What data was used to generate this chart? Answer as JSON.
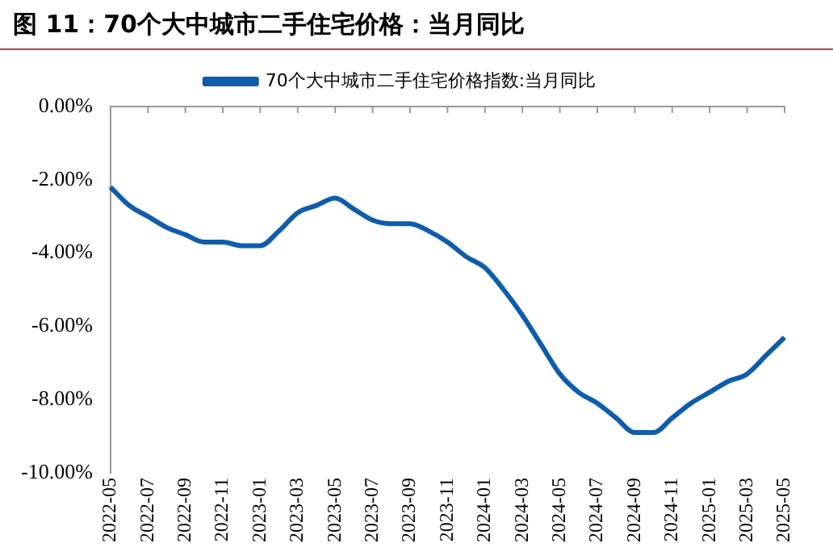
{
  "chart_data": {
    "type": "line",
    "title": "图 11：70个大中城市二手住宅价格：当月同比",
    "categories": [
      "2022-05",
      null,
      "2022-07",
      null,
      "2022-09",
      null,
      "2022-11",
      null,
      "2023-01",
      null,
      "2023-03",
      null,
      "2023-05",
      null,
      "2023-07",
      null,
      "2023-09",
      null,
      "2023-11",
      null,
      "2024-01",
      null,
      "2024-03",
      null,
      "2024-05",
      null,
      "2024-07",
      null,
      "2024-09",
      null,
      "2024-11",
      null,
      "2025-01",
      null,
      "2025-03",
      null,
      "2025-05"
    ],
    "series": [
      {
        "name": "70个大中城市二手住宅价格指数:当月同比",
        "color": "#0f5cad",
        "values": [
          -2.2,
          -2.7,
          -3.0,
          -3.3,
          -3.5,
          -3.7,
          -3.7,
          -3.8,
          -3.8,
          -3.4,
          -2.9,
          -2.7,
          -2.5,
          -2.8,
          -3.1,
          -3.2,
          -3.2,
          -3.4,
          -3.7,
          -4.1,
          -4.4,
          -5.0,
          -5.7,
          -6.5,
          -7.3,
          -7.8,
          -8.1,
          -8.5,
          -8.9,
          -8.9,
          -8.5,
          -8.1,
          -7.8,
          -7.5,
          -7.3,
          -6.8,
          -6.3
        ]
      }
    ],
    "ylim": [
      -10,
      0
    ],
    "yticks": [
      {
        "value": 0,
        "label": "0.00%"
      },
      {
        "value": -2,
        "label": "-2.00%"
      },
      {
        "value": -4,
        "label": "-4.00%"
      },
      {
        "value": -6,
        "label": "-6.00%"
      },
      {
        "value": -8,
        "label": "-8.00%"
      },
      {
        "value": -10,
        "label": "-10.00%"
      }
    ],
    "legend": "top",
    "grid": false,
    "marker": "none",
    "line_style": "solid"
  }
}
